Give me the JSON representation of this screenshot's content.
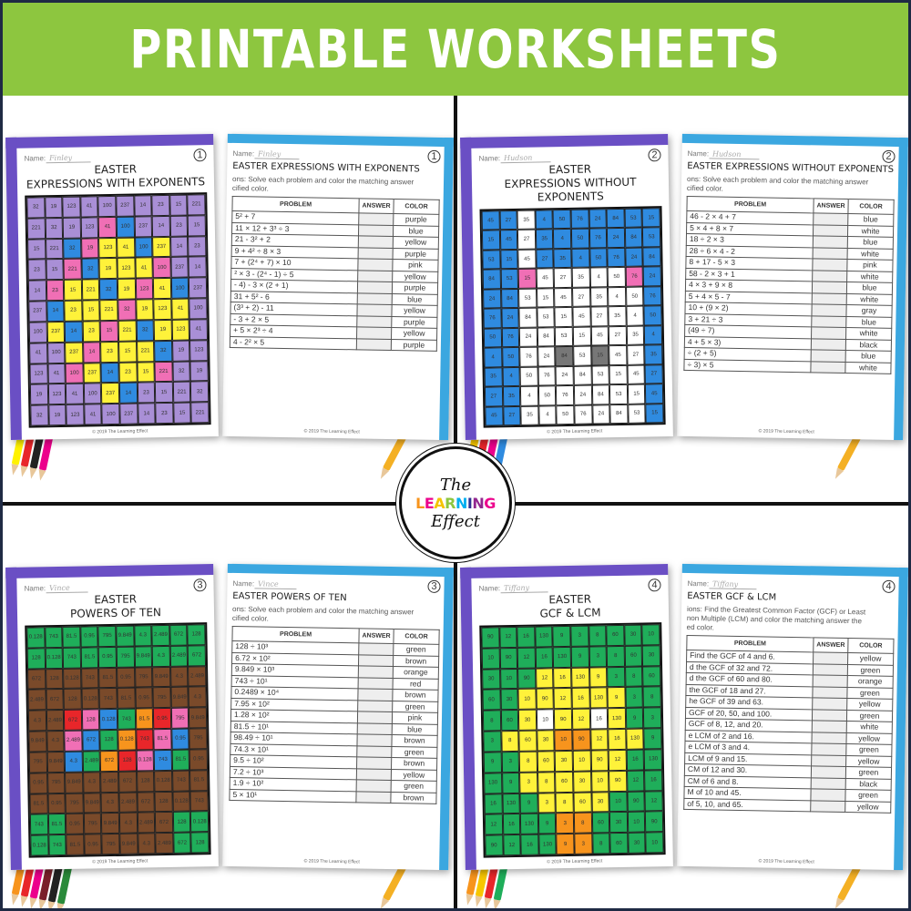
{
  "banner": {
    "title": "PRINTABLE WORKSHEETS",
    "color": "#8dc63f"
  },
  "logo": {
    "line1": "The",
    "line2": "LEARNING",
    "line3": "Effect",
    "letter_colors": [
      "#f7941d",
      "#ec008c",
      "#fff200",
      "#8dc63f",
      "#00aeef",
      "#2e3192",
      "#92278f",
      "#ec008c"
    ]
  },
  "footer": "© 2019 The Learning Effect",
  "name_label": "Name:",
  "headers": {
    "problem": "PROBLEM",
    "answer": "ANSWER",
    "color": "COLOR"
  },
  "worksheets": [
    {
      "number": "1",
      "name": "Finley",
      "front_title": [
        "EASTER",
        "EXPRESSIONS WITH EXPONENTS"
      ],
      "back_title": "EASTER EXPRESSIONS WITH EXPONENTS",
      "border": "#6a4fc4",
      "instructions": [
        "ons: Solve each problem and color the matching answer",
        "cified color."
      ],
      "rows": [
        [
          "5² + 7",
          "purple"
        ],
        [
          "11 × 12 + 3³ ÷ 3",
          "blue"
        ],
        [
          "21 - 3² + 2",
          "yellow"
        ],
        [
          "9 + 4² ÷ 8 × 3",
          "purple"
        ],
        [
          "7 + (2⁴ + 7) × 10",
          "pink"
        ],
        [
          "² × 3 - (2⁴ - 1) ÷ 5",
          "yellow"
        ],
        [
          "- 4) - 3 × (2 + 1)",
          "purple"
        ],
        [
          "31 + 5² - 6",
          "blue"
        ],
        [
          "(3³ + 2) - 11",
          "yellow"
        ],
        [
          "- 3 + 2 × 5",
          "purple"
        ],
        [
          "+ 5 × 2³ ÷ 4",
          "yellow"
        ],
        [
          "4 - 2² × 5",
          "purple"
        ]
      ]
    },
    {
      "number": "2",
      "name": "Hudson",
      "front_title": [
        "EASTER",
        "EXPRESSIONS WITHOUT EXPONENTS"
      ],
      "back_title": "EASTER EXPRESSIONS WITHOUT EXPONENTS",
      "border": "#6a4fc4",
      "instructions": [
        "ons: Solve each problem and color the matching answer",
        "cified color."
      ],
      "rows": [
        [
          "46 - 2 × 4 + 7",
          "blue"
        ],
        [
          "5 × 4 + 8 × 7",
          "white"
        ],
        [
          "18 ÷ 2 × 3",
          "blue"
        ],
        [
          "28 ÷ 6 × 4 - 2",
          "white"
        ],
        [
          "8 + 17 - 5 × 3",
          "pink"
        ],
        [
          "58 - 2 × 3 + 1",
          "white"
        ],
        [
          "4 × 3 + 9 × 8",
          "blue"
        ],
        [
          "5 + 4 × 5 - 7",
          "white"
        ],
        [
          "10 + (9 × 2)",
          "gray"
        ],
        [
          "3 + 21 ÷ 3",
          "blue"
        ],
        [
          "(49 ÷ 7)",
          "white"
        ],
        [
          "4 + 5 × 3)",
          "black"
        ],
        [
          "÷ (2 + 5)",
          "blue"
        ],
        [
          "÷ 3) × 5",
          "white"
        ]
      ]
    },
    {
      "number": "3",
      "name": "Vince",
      "front_title": [
        "EASTER",
        "POWERS OF TEN"
      ],
      "back_title": "EASTER POWERS OF TEN",
      "border": "#6a4fc4",
      "instructions": [
        "ons: Solve each problem and color the matching answer",
        "cified color."
      ],
      "rows": [
        [
          "128 ÷ 10³",
          "green"
        ],
        [
          "6.72 × 10²",
          "brown"
        ],
        [
          "9.849 × 10³",
          "orange"
        ],
        [
          "743 ÷ 10¹",
          "red"
        ],
        [
          "0.2489 × 10⁴",
          "brown"
        ],
        [
          "7.95 × 10²",
          "green"
        ],
        [
          "1.28 × 10²",
          "pink"
        ],
        [
          "81.5 ÷ 10¹",
          "blue"
        ],
        [
          "98.49 ÷ 10¹",
          "brown"
        ],
        [
          "74.3 × 10¹",
          "green"
        ],
        [
          "9.5 ÷ 10²",
          "brown"
        ],
        [
          "7.2 ÷ 10³",
          "yellow"
        ],
        [
          "1.9 ÷ 10²",
          "green"
        ],
        [
          "5 × 10¹",
          "brown"
        ]
      ]
    },
    {
      "number": "4",
      "name": "Tiffany",
      "front_title": [
        "EASTER",
        "GCF & LCM"
      ],
      "back_title": "EASTER GCF & LCM",
      "border": "#6a4fc4",
      "instructions": [
        "ions: Find the Greatest Common Factor (GCF) or Least",
        "non Multiple (LCM) and color the matching answer the",
        "ed color."
      ],
      "rows": [
        [
          "Find the GCF of 4 and 6.",
          "yellow"
        ],
        [
          "d the GCF of 32 and 72.",
          "green"
        ],
        [
          "d the GCF of 60 and 80.",
          "orange"
        ],
        [
          "the GCF of 18 and 27.",
          "green"
        ],
        [
          "he GCF of 39 and 63.",
          "yellow"
        ],
        [
          "GCF of 20, 50, and 100.",
          "green"
        ],
        [
          "GCF of 8, 12, and 20.",
          "white"
        ],
        [
          "e LCM of 2 and 16.",
          "yellow"
        ],
        [
          "e LCM of 3 and 4.",
          "green"
        ],
        [
          "LCM of 9 and 15.",
          "yellow"
        ],
        [
          "CM of 12 and 30.",
          "green"
        ],
        [
          "CM of 6 and 8.",
          "black"
        ],
        [
          "M of 10 and 45.",
          "green"
        ],
        [
          "of 5, 10, and 65.",
          "yellow"
        ]
      ]
    }
  ],
  "palette": {
    "purple": "#a98fd6",
    "yellow": "#fff23a",
    "blue": "#2f8be0",
    "pink": "#f06fb5",
    "white": "#ffffff",
    "gray": "#777777",
    "green": "#1fae5a",
    "brown": "#7a4a2a",
    "orange": "#f7941d",
    "red": "#e8262a",
    "black": "#222222"
  }
}
